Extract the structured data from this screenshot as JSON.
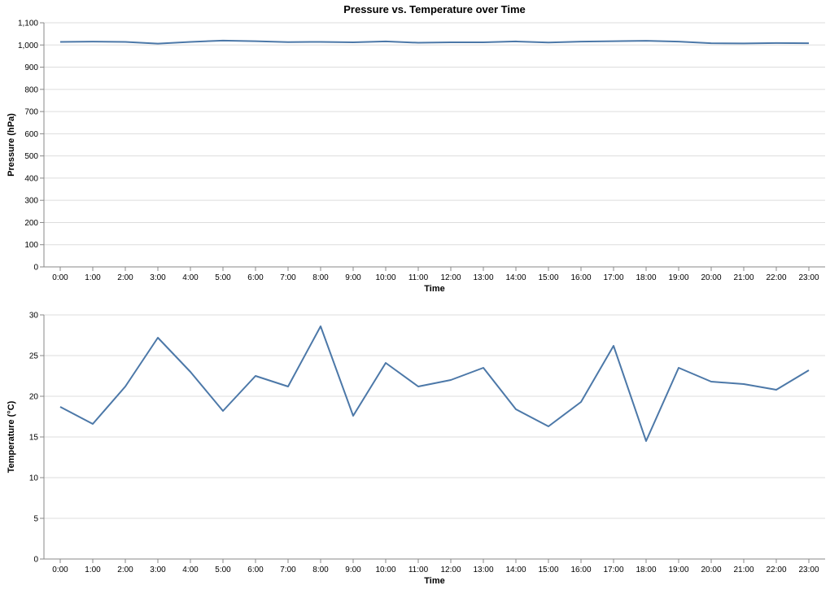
{
  "title": "Pressure vs. Temperature over Time",
  "colors": {
    "line": "#4c78a8"
  },
  "chart_data": [
    {
      "type": "line",
      "xlabel": "Time",
      "ylabel": "Pressure (hPa)",
      "categories": [
        "0:00",
        "1:00",
        "2:00",
        "3:00",
        "4:00",
        "5:00",
        "6:00",
        "7:00",
        "8:00",
        "9:00",
        "10:00",
        "11:00",
        "12:00",
        "13:00",
        "14:00",
        "15:00",
        "16:00",
        "17:00",
        "18:00",
        "19:00",
        "20:00",
        "21:00",
        "22:00",
        "23:00"
      ],
      "values": [
        1014,
        1015,
        1014,
        1006,
        1014,
        1020,
        1017,
        1013,
        1014,
        1012,
        1016,
        1010,
        1012,
        1012,
        1016,
        1011,
        1015,
        1017,
        1019,
        1015,
        1008,
        1007,
        1009,
        1008
      ],
      "ylim": [
        0,
        1100
      ],
      "yticks": [
        0,
        100,
        200,
        300,
        400,
        500,
        600,
        700,
        800,
        900,
        1000,
        1100
      ],
      "ytick_labels": [
        "0",
        "100",
        "200",
        "300",
        "400",
        "500",
        "600",
        "700",
        "800",
        "900",
        "1,000",
        "1,100"
      ],
      "grid": true
    },
    {
      "type": "line",
      "xlabel": "Time",
      "ylabel": "Temperature (°C)",
      "categories": [
        "0:00",
        "1:00",
        "2:00",
        "3:00",
        "4:00",
        "5:00",
        "6:00",
        "7:00",
        "8:00",
        "9:00",
        "10:00",
        "11:00",
        "12:00",
        "13:00",
        "14:00",
        "15:00",
        "16:00",
        "17:00",
        "18:00",
        "19:00",
        "20:00",
        "21:00",
        "22:00",
        "23:00"
      ],
      "values": [
        18.7,
        16.6,
        21.2,
        27.2,
        23.0,
        18.2,
        22.5,
        21.2,
        28.6,
        17.6,
        24.1,
        21.2,
        22.0,
        23.5,
        18.4,
        16.3,
        19.3,
        26.2,
        14.5,
        23.5,
        21.8,
        21.5,
        20.8,
        23.2
      ],
      "ylim": [
        0,
        30
      ],
      "yticks": [
        0,
        5,
        10,
        15,
        20,
        25,
        30
      ],
      "ytick_labels": [
        "0",
        "5",
        "10",
        "15",
        "20",
        "25",
        "30"
      ],
      "grid": true
    }
  ]
}
